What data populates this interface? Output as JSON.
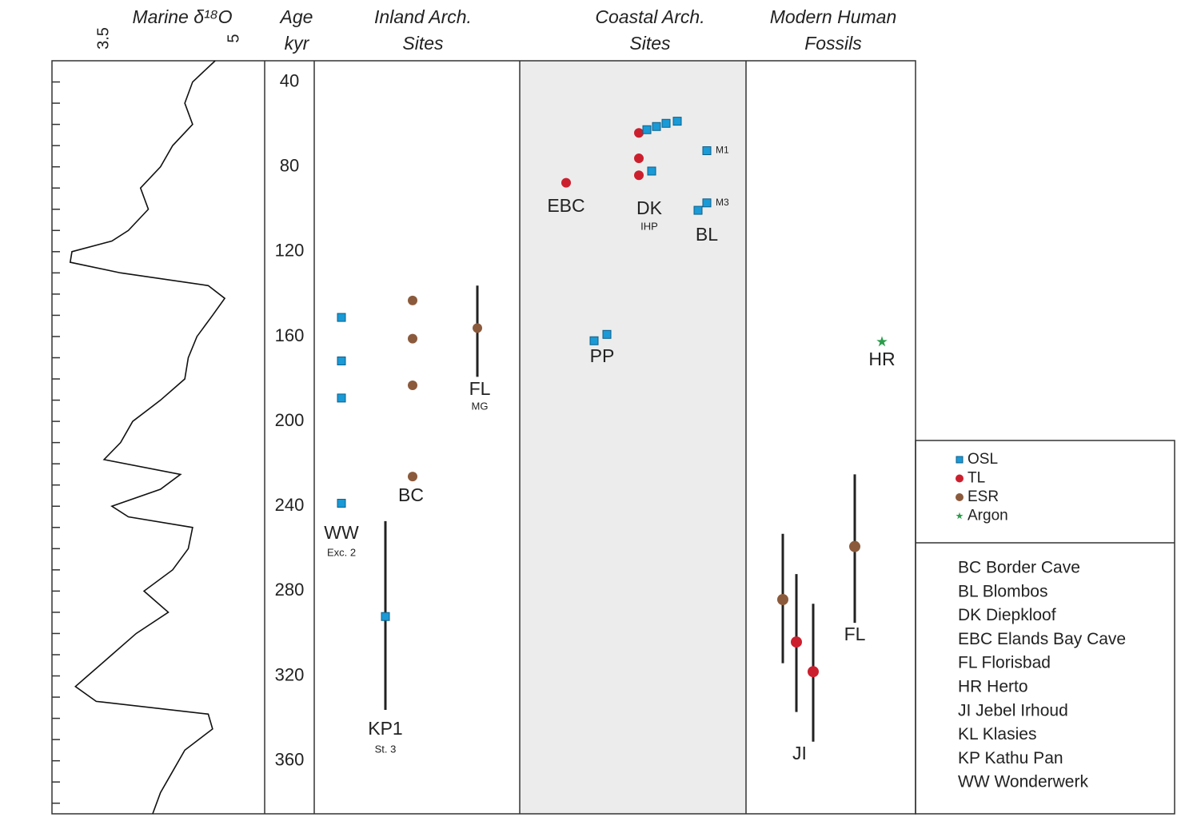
{
  "chart_data": {
    "type": "scatter",
    "headers": [
      [
        "Marine δ¹⁸O"
      ],
      [
        "Age",
        "kyr"
      ],
      [
        "Inland Arch.",
        "Sites"
      ],
      [
        "Coastal Arch.",
        "Sites"
      ],
      [
        "Modern Human",
        "Fossils"
      ]
    ],
    "ylim": [
      30,
      385
    ],
    "yticks": [
      40,
      80,
      120,
      160,
      200,
      240,
      280,
      320,
      360
    ],
    "minor_yticks": [
      40,
      50,
      60,
      70,
      80,
      90,
      100,
      110,
      120,
      130,
      140,
      150,
      160,
      170,
      180,
      190,
      200,
      210,
      220,
      230,
      240,
      250,
      260,
      270,
      280,
      290,
      300,
      310,
      320,
      330,
      340,
      350,
      360,
      370,
      380
    ],
    "xlim": [
      2.9,
      5.35
    ],
    "xticks": [
      3.5,
      5
    ],
    "curve": {
      "color": "#111111",
      "age": [
        30,
        40,
        50,
        60,
        70,
        80,
        90,
        100,
        110,
        115,
        120,
        125,
        130,
        136,
        142,
        150,
        160,
        170,
        180,
        190,
        200,
        210,
        218,
        225,
        232,
        240,
        245,
        250,
        260,
        270,
        280,
        290,
        300,
        310,
        320,
        325,
        332,
        338,
        345,
        355,
        365,
        375,
        385
      ],
      "d18O": [
        4.78,
        4.52,
        4.43,
        4.52,
        4.29,
        4.15,
        3.92,
        4.01,
        3.78,
        3.59,
        3.13,
        3.11,
        3.69,
        4.7,
        4.89,
        4.75,
        4.57,
        4.47,
        4.43,
        4.15,
        3.83,
        3.69,
        3.5,
        4.38,
        4.15,
        3.59,
        3.78,
        4.52,
        4.47,
        4.29,
        3.96,
        4.24,
        3.87,
        3.59,
        3.31,
        3.17,
        3.41,
        4.7,
        4.75,
        4.43,
        4.29,
        4.15,
        4.06
      ]
    },
    "methods": [
      {
        "name": "OSL",
        "color": "#1a9ad6"
      },
      {
        "name": "TL",
        "color": "#cc1f2e"
      },
      {
        "name": "ESR",
        "color": "#8b5a3c"
      },
      {
        "name": "Argon",
        "color": "#2a9d4a"
      }
    ],
    "panels": [
      {
        "sites": [
          {
            "label": "WW",
            "sublabel": "Exc. 2",
            "points": [
              {
                "age": 151,
                "m": 0
              },
              {
                "age": 171.5,
                "m": 0
              },
              {
                "age": 189,
                "m": 0
              },
              {
                "age": 238.6,
                "m": 0
              }
            ]
          },
          {
            "label": "BC",
            "points": [
              {
                "age": 143,
                "m": 2
              },
              {
                "age": 161,
                "m": 2
              },
              {
                "age": 183,
                "m": 2
              },
              {
                "age": 226,
                "m": 2
              }
            ]
          },
          {
            "label": "FL",
            "sublabel": "MG",
            "points": [
              {
                "age": 156,
                "m": 2,
                "err": [
                  136,
                  179
                ]
              }
            ]
          },
          {
            "label": "KP1",
            "sublabel": "St. 3",
            "points": [
              {
                "age": 292,
                "m": 0,
                "err": [
                  247,
                  336
                ]
              }
            ]
          }
        ]
      },
      {
        "sites": [
          {
            "label": "EBC",
            "points": [
              {
                "age": 87.5,
                "m": 1
              }
            ]
          },
          {
            "label": "DK",
            "sublabel": "IHP",
            "points": [
              {
                "age": 64,
                "m": 1
              },
              {
                "age": 76,
                "m": 1
              },
              {
                "age": 84,
                "m": 1
              },
              {
                "age": 62.5,
                "m": 0
              },
              {
                "age": 61,
                "m": 0
              },
              {
                "age": 59.5,
                "m": 0
              },
              {
                "age": 58.5,
                "m": 0
              },
              {
                "age": 82,
                "m": 0
              }
            ]
          },
          {
            "label": "BL",
            "points": [
              {
                "age": 72.4,
                "m": 0,
                "tag": "M1"
              },
              {
                "age": 97,
                "m": 0,
                "tag": "M3"
              },
              {
                "age": 100.5,
                "m": 0
              }
            ]
          },
          {
            "label": "PP",
            "points": [
              {
                "age": 162,
                "m": 0
              },
              {
                "age": 159,
                "m": 0
              }
            ]
          }
        ]
      },
      {
        "sites": [
          {
            "label": "JI",
            "points": [
              {
                "age": 284,
                "m": 2,
                "err": [
                  253,
                  314
                ]
              },
              {
                "age": 304,
                "m": 1,
                "err": [
                  272,
                  337
                ]
              },
              {
                "age": 318,
                "m": 1,
                "err": [
                  286,
                  351
                ]
              }
            ]
          },
          {
            "label": "FL",
            "points": [
              {
                "age": 259,
                "m": 2,
                "err": [
                  225,
                  295
                ]
              }
            ]
          },
          {
            "label": "HR",
            "points": [
              {
                "age": 162.5,
                "m": 3
              }
            ]
          }
        ]
      }
    ],
    "abbreviations": [
      "BC Border Cave",
      "BL Blombos",
      "DK  Diepkloof",
      "EBC Elands Bay Cave",
      "FL  Florisbad",
      "HR  Herto",
      "JI  Jebel Irhoud",
      "KL  Klasies",
      "KP  Kathu Pan",
      "WW Wonderwerk"
    ]
  }
}
